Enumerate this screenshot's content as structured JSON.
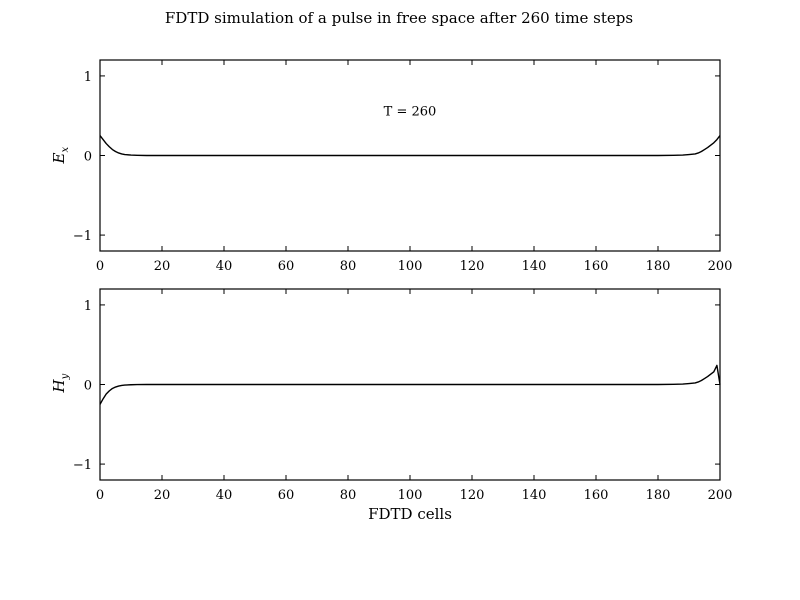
{
  "figure": {
    "title": "FDTD simulation of a pulse in free space after 260 time steps"
  },
  "chart_data": [
    {
      "type": "line",
      "ylabel": "E_x",
      "ylabel_main": "E",
      "ylabel_sub": "x",
      "xlabel": "",
      "xlim": [
        0,
        200
      ],
      "ylim": [
        -1.2,
        1.2
      ],
      "xticks": [
        0,
        20,
        40,
        60,
        80,
        100,
        120,
        140,
        160,
        180,
        200
      ],
      "yticks": [
        -1,
        0,
        1
      ],
      "grid": false,
      "annotations": [
        {
          "text": "T = 260",
          "x": 100,
          "y": 0.55
        }
      ],
      "series": [
        {
          "color": "#000000",
          "x": [
            0,
            1,
            2,
            3,
            4,
            5,
            6,
            7,
            8,
            10,
            12,
            15,
            20,
            100,
            180,
            185,
            188,
            190,
            192,
            193,
            194,
            195,
            196,
            197,
            198,
            199,
            200
          ],
          "y": [
            0.25,
            0.2,
            0.15,
            0.11,
            0.075,
            0.05,
            0.032,
            0.02,
            0.012,
            0.005,
            0.002,
            0.0,
            0.0,
            0.0,
            0.0,
            0.002,
            0.005,
            0.012,
            0.02,
            0.032,
            0.05,
            0.075,
            0.1,
            0.13,
            0.16,
            0.2,
            0.25
          ]
        }
      ]
    },
    {
      "type": "line",
      "ylabel": "H_y",
      "ylabel_main": "H",
      "ylabel_sub": "y",
      "xlabel": "FDTD cells",
      "xlim": [
        0,
        200
      ],
      "ylim": [
        -1.2,
        1.2
      ],
      "xticks": [
        0,
        20,
        40,
        60,
        80,
        100,
        120,
        140,
        160,
        180,
        200
      ],
      "yticks": [
        -1,
        0,
        1
      ],
      "grid": false,
      "series": [
        {
          "color": "#000000",
          "x": [
            0,
            1,
            2,
            3,
            4,
            5,
            6,
            7,
            8,
            10,
            12,
            15,
            20,
            100,
            180,
            185,
            188,
            190,
            192,
            193,
            194,
            195,
            196,
            197,
            198,
            199,
            200
          ],
          "y": [
            -0.25,
            -0.18,
            -0.12,
            -0.08,
            -0.05,
            -0.032,
            -0.02,
            -0.012,
            -0.007,
            -0.003,
            -0.001,
            0.0,
            0.0,
            0.0,
            0.0,
            0.002,
            0.005,
            0.012,
            0.02,
            0.032,
            0.05,
            0.075,
            0.1,
            0.13,
            0.16,
            0.24,
            0.0
          ]
        }
      ]
    }
  ]
}
